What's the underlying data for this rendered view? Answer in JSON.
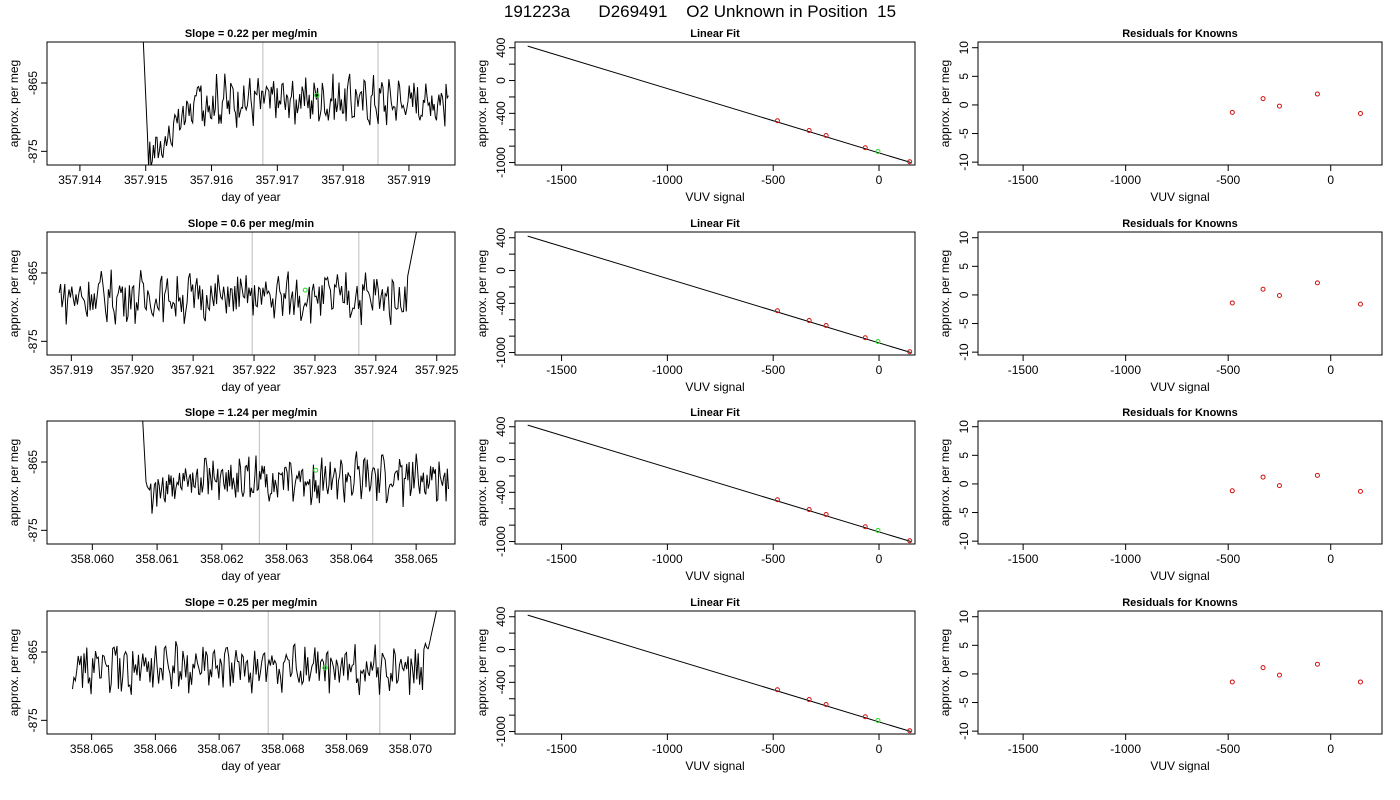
{
  "page": {
    "title": "191223a      D269491    O2 Unknown in Position  15"
  },
  "colors": {
    "line": "#000000",
    "refline": "#c8c8c8",
    "unknown_point": "#22dd22",
    "known_point": "#d01010",
    "fit_line": "#000000"
  },
  "chart_data": [
    {
      "type": "line",
      "row": 0,
      "panel": "timeseries",
      "title": "Slope =  0.22  per meg/min",
      "xlabel": "day of year",
      "ylabel": "approx. per meg",
      "xticks": [
        "357.914",
        "357.915",
        "357.916",
        "357.917",
        "357.918",
        "357.919"
      ],
      "xtick_values": [
        357.914,
        357.915,
        357.916,
        357.917,
        357.918,
        357.919
      ],
      "yticks": [
        "-865",
        "-875"
      ],
      "ytick_values": [
        -865,
        -875
      ],
      "xlim": [
        357.9135,
        357.9197
      ],
      "ylim": [
        -877,
        -859
      ],
      "series_x0": 357.9149,
      "series_x1": 357.9196,
      "series_start": -845,
      "series_level": -867.5,
      "series_start_dip": -876,
      "vlines": [
        357.91678,
        357.91853
      ],
      "unknown_point": {
        "x": 357.9176,
        "y": -866.8
      }
    },
    {
      "type": "scatter",
      "row": 0,
      "panel": "linear_fit",
      "title": "Linear Fit",
      "xlabel": "VUV signal",
      "ylabel": "approx. per meg",
      "xticks": [
        "-1500",
        "-1000",
        "-500",
        "0"
      ],
      "xtick_values": [
        -1500,
        -1000,
        -500,
        0
      ],
      "yticks": [
        "400",
        "0",
        "-400",
        "-1000"
      ],
      "ytick_values": [
        400,
        0,
        -400,
        -1000
      ],
      "xlim": [
        -1720,
        170
      ],
      "ylim": [
        -1030,
        470
      ],
      "fit_line": [
        [
          -1660,
          420
        ],
        [
          150,
          -1000
        ]
      ],
      "knowns": [
        {
          "x": -480,
          "y": -490
        },
        {
          "x": -330,
          "y": -610
        },
        {
          "x": -250,
          "y": -670
        },
        {
          "x": -65,
          "y": -820
        },
        {
          "x": 145,
          "y": -990
        }
      ],
      "unknown": {
        "x": -5,
        "y": -865
      }
    },
    {
      "type": "scatter",
      "row": 0,
      "panel": "residuals",
      "title": "Residuals for Knowns",
      "xlabel": "VUV signal",
      "ylabel": "approx. per meg",
      "xticks": [
        "-1500",
        "-1000",
        "-500",
        "0"
      ],
      "xtick_values": [
        -1500,
        -1000,
        -500,
        0
      ],
      "yticks": [
        "10",
        "5",
        "0",
        "-5",
        "-10"
      ],
      "ytick_values": [
        10,
        5,
        0,
        -5,
        -10
      ],
      "xlim": [
        -1720,
        250
      ],
      "ylim": [
        -10.5,
        11
      ],
      "knowns": [
        {
          "x": -480,
          "y": -1.3
        },
        {
          "x": -330,
          "y": 1.1
        },
        {
          "x": -250,
          "y": -0.2
        },
        {
          "x": -65,
          "y": 1.9
        },
        {
          "x": 145,
          "y": -1.5
        }
      ]
    },
    {
      "type": "line",
      "row": 1,
      "panel": "timeseries",
      "title": "Slope =  0.6  per meg/min",
      "xlabel": "day of year",
      "ylabel": "approx. per meg",
      "xticks": [
        "357.919",
        "357.920",
        "357.921",
        "357.922",
        "357.923",
        "357.924",
        "357.925"
      ],
      "xtick_values": [
        357.919,
        357.92,
        357.921,
        357.922,
        357.923,
        357.924,
        357.925
      ],
      "yticks": [
        "-865",
        "-875"
      ],
      "ytick_values": [
        -865,
        -875
      ],
      "xlim": [
        357.9186,
        357.9253
      ],
      "ylim": [
        -877,
        -859
      ],
      "series_x0": 357.9188,
      "series_x1": 357.9248,
      "series_level": -868.5,
      "series_end_rise": -855,
      "vlines": [
        357.92197,
        357.92372
      ],
      "unknown_point": {
        "x": 357.92284,
        "y": -867.5
      }
    },
    {
      "type": "scatter",
      "row": 1,
      "panel": "linear_fit",
      "title": "Linear Fit",
      "xlabel": "VUV signal",
      "ylabel": "approx. per meg",
      "xticks": [
        "-1500",
        "-1000",
        "-500",
        "0"
      ],
      "xtick_values": [
        -1500,
        -1000,
        -500,
        0
      ],
      "yticks": [
        "400",
        "0",
        "-400",
        "-1000"
      ],
      "ytick_values": [
        400,
        0,
        -400,
        -1000
      ],
      "xlim": [
        -1720,
        170
      ],
      "ylim": [
        -1030,
        470
      ],
      "fit_line": [
        [
          -1660,
          420
        ],
        [
          150,
          -1000
        ]
      ],
      "knowns": [
        {
          "x": -480,
          "y": -490
        },
        {
          "x": -330,
          "y": -610
        },
        {
          "x": -250,
          "y": -670
        },
        {
          "x": -65,
          "y": -820
        },
        {
          "x": 145,
          "y": -990
        }
      ],
      "unknown": {
        "x": -5,
        "y": -865
      }
    },
    {
      "type": "scatter",
      "row": 1,
      "panel": "residuals",
      "title": "Residuals for Knowns",
      "xlabel": "VUV signal",
      "ylabel": "approx. per meg",
      "xticks": [
        "-1500",
        "-1000",
        "-500",
        "0"
      ],
      "xtick_values": [
        -1500,
        -1000,
        -500,
        0
      ],
      "yticks": [
        "10",
        "5",
        "0",
        "-5",
        "-10"
      ],
      "ytick_values": [
        10,
        5,
        0,
        -5,
        -10
      ],
      "xlim": [
        -1720,
        250
      ],
      "ylim": [
        -10.5,
        11
      ],
      "knowns": [
        {
          "x": -480,
          "y": -1.4
        },
        {
          "x": -330,
          "y": 1.0
        },
        {
          "x": -250,
          "y": -0.1
        },
        {
          "x": -65,
          "y": 2.1
        },
        {
          "x": 145,
          "y": -1.6
        }
      ]
    },
    {
      "type": "line",
      "row": 2,
      "panel": "timeseries",
      "title": "Slope =  1.24  per meg/min",
      "xlabel": "day of year",
      "ylabel": "approx. per meg",
      "xticks": [
        "358.060",
        "358.061",
        "358.062",
        "358.063",
        "358.064",
        "358.065"
      ],
      "xtick_values": [
        358.06,
        358.061,
        358.062,
        358.063,
        358.064,
        358.065
      ],
      "yticks": [
        "-865",
        "-875"
      ],
      "ytick_values": [
        -865,
        -875
      ],
      "xlim": [
        358.0593,
        358.0656
      ],
      "ylim": [
        -877,
        -859
      ],
      "series_x0": 358.0607,
      "series_x1": 358.0655,
      "series_start": -845,
      "series_level": -867.5,
      "series_start_dip": -870.5,
      "vlines": [
        358.06258,
        358.06433
      ],
      "unknown_point": {
        "x": 358.06345,
        "y": -866.2
      }
    },
    {
      "type": "scatter",
      "row": 2,
      "panel": "linear_fit",
      "title": "Linear Fit",
      "xlabel": "VUV signal",
      "ylabel": "approx. per meg",
      "xticks": [
        "-1500",
        "-1000",
        "-500",
        "0"
      ],
      "xtick_values": [
        -1500,
        -1000,
        -500,
        0
      ],
      "yticks": [
        "400",
        "0",
        "-400",
        "-1000"
      ],
      "ytick_values": [
        400,
        0,
        -400,
        -1000
      ],
      "xlim": [
        -1720,
        170
      ],
      "ylim": [
        -1030,
        470
      ],
      "fit_line": [
        [
          -1660,
          420
        ],
        [
          150,
          -1000
        ]
      ],
      "knowns": [
        {
          "x": -480,
          "y": -490
        },
        {
          "x": -330,
          "y": -610
        },
        {
          "x": -250,
          "y": -670
        },
        {
          "x": -65,
          "y": -820
        },
        {
          "x": 145,
          "y": -990
        }
      ],
      "unknown": {
        "x": -5,
        "y": -865
      }
    },
    {
      "type": "scatter",
      "row": 2,
      "panel": "residuals",
      "title": "Residuals for Knowns",
      "xlabel": "VUV signal",
      "ylabel": "approx. per meg",
      "xticks": [
        "-1500",
        "-1000",
        "-500",
        "0"
      ],
      "xtick_values": [
        -1500,
        -1000,
        -500,
        0
      ],
      "yticks": [
        "10",
        "5",
        "0",
        "-5",
        "-10"
      ],
      "ytick_values": [
        10,
        5,
        0,
        -5,
        -10
      ],
      "xlim": [
        -1720,
        250
      ],
      "ylim": [
        -10.5,
        11
      ],
      "knowns": [
        {
          "x": -480,
          "y": -1.2
        },
        {
          "x": -330,
          "y": 1.2
        },
        {
          "x": -250,
          "y": -0.3
        },
        {
          "x": -65,
          "y": 1.5
        },
        {
          "x": 145,
          "y": -1.3
        }
      ]
    },
    {
      "type": "line",
      "row": 3,
      "panel": "timeseries",
      "title": "Slope =  0.25  per meg/min",
      "xlabel": "day of year",
      "ylabel": "approx. per meg",
      "xticks": [
        "358.065",
        "358.066",
        "358.067",
        "358.068",
        "358.069",
        "358.070"
      ],
      "xtick_values": [
        358.065,
        358.066,
        358.067,
        358.068,
        358.069,
        358.07
      ],
      "yticks": [
        "-865",
        "-875"
      ],
      "ytick_values": [
        -865,
        -875
      ],
      "xlim": [
        358.0643,
        358.0707
      ],
      "ylim": [
        -877,
        -859
      ],
      "series_x0": 358.0647,
      "series_x1": 358.07055,
      "series_level": -867.5,
      "series_end_rise": -855,
      "vlines": [
        358.06777,
        358.06952
      ],
      "unknown_point": {
        "x": 358.06866,
        "y": -867.3
      }
    },
    {
      "type": "scatter",
      "row": 3,
      "panel": "linear_fit",
      "title": "Linear Fit",
      "xlabel": "VUV signal",
      "ylabel": "approx. per meg",
      "xticks": [
        "-1500",
        "-1000",
        "-500",
        "0"
      ],
      "xtick_values": [
        -1500,
        -1000,
        -500,
        0
      ],
      "yticks": [
        "400",
        "0",
        "-400",
        "-1000"
      ],
      "ytick_values": [
        400,
        0,
        -400,
        -1000
      ],
      "xlim": [
        -1720,
        170
      ],
      "ylim": [
        -1030,
        470
      ],
      "fit_line": [
        [
          -1660,
          420
        ],
        [
          150,
          -1000
        ]
      ],
      "knowns": [
        {
          "x": -480,
          "y": -490
        },
        {
          "x": -330,
          "y": -610
        },
        {
          "x": -250,
          "y": -670
        },
        {
          "x": -65,
          "y": -820
        },
        {
          "x": 145,
          "y": -990
        }
      ],
      "unknown": {
        "x": -5,
        "y": -865
      }
    },
    {
      "type": "scatter",
      "row": 3,
      "panel": "residuals",
      "title": "Residuals for Knowns",
      "xlabel": "VUV signal",
      "ylabel": "approx. per meg",
      "xticks": [
        "-1500",
        "-1000",
        "-500",
        "0"
      ],
      "xtick_values": [
        -1500,
        -1000,
        -500,
        0
      ],
      "yticks": [
        "10",
        "5",
        "0",
        "-5",
        "-10"
      ],
      "ytick_values": [
        10,
        5,
        0,
        -5,
        -10
      ],
      "xlim": [
        -1720,
        250
      ],
      "ylim": [
        -10.5,
        11
      ],
      "knowns": [
        {
          "x": -480,
          "y": -1.4
        },
        {
          "x": -330,
          "y": 1.1
        },
        {
          "x": -250,
          "y": -0.2
        },
        {
          "x": -65,
          "y": 1.7
        },
        {
          "x": 145,
          "y": -1.4
        }
      ]
    }
  ]
}
